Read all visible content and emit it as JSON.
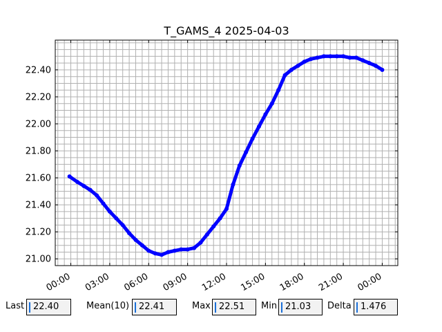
{
  "colors": {
    "series": "#0000ff",
    "grid": "#b0b0b0",
    "stat_bg": "#f2f2f2",
    "cursor": "#1a6fd8"
  },
  "chart_data": {
    "type": "line",
    "title": "T_GAMS_4 2025-04-03",
    "xlabel": "",
    "ylabel": "",
    "x_unit": "hours since 2025-04-03 00:00",
    "xlim": [
      -1.2,
      25.2
    ],
    "ylim": [
      20.95,
      22.62
    ],
    "x_ticks": [
      0,
      3,
      6,
      9,
      12,
      15,
      18,
      21,
      24
    ],
    "x_tick_labels": [
      "00:00",
      "03:00",
      "06:00",
      "09:00",
      "12:00",
      "15:00",
      "18:00",
      "21:00",
      "00:00"
    ],
    "y_ticks": [
      21.0,
      21.2,
      21.4,
      21.6,
      21.8,
      22.0,
      22.2,
      22.4
    ],
    "y_tick_labels": [
      "21.00",
      "21.20",
      "21.40",
      "21.60",
      "21.80",
      "22.00",
      "22.20",
      "22.40"
    ],
    "grid": true,
    "series": [
      {
        "name": "",
        "color": "#0000ff",
        "x": [
          -0.1,
          0.5,
          1.0,
          1.5,
          2.0,
          2.5,
          3.0,
          3.5,
          4.0,
          4.5,
          5.0,
          5.5,
          6.0,
          6.5,
          7.0,
          7.5,
          8.0,
          8.5,
          9.0,
          9.5,
          10.0,
          10.5,
          11.0,
          11.5,
          12.0,
          12.5,
          13.0,
          13.5,
          14.0,
          14.5,
          15.0,
          15.5,
          16.0,
          16.5,
          17.0,
          17.5,
          18.0,
          18.5,
          19.0,
          19.5,
          20.0,
          20.5,
          21.0,
          21.5,
          22.0,
          22.5,
          23.0,
          23.5,
          24.0
        ],
        "y": [
          21.61,
          21.57,
          21.54,
          21.51,
          21.47,
          21.41,
          21.35,
          21.3,
          21.25,
          21.19,
          21.14,
          21.1,
          21.06,
          21.04,
          21.03,
          21.05,
          21.06,
          21.07,
          21.07,
          21.08,
          21.12,
          21.18,
          21.24,
          21.3,
          21.37,
          21.55,
          21.69,
          21.79,
          21.89,
          21.98,
          22.07,
          22.15,
          22.25,
          22.36,
          22.4,
          22.43,
          22.46,
          22.48,
          22.49,
          22.5,
          22.5,
          22.5,
          22.5,
          22.49,
          22.49,
          22.47,
          22.45,
          22.43,
          22.4
        ]
      }
    ]
  },
  "stats": {
    "last_label": "Last",
    "last_value": "22.40",
    "mean_label": "Mean(10)",
    "mean_value": "22.41",
    "max_label": "Max",
    "max_value": "22.51",
    "min_label": "Min",
    "min_value": "21.03",
    "delta_label": "Delta",
    "delta_value": "1.476"
  }
}
